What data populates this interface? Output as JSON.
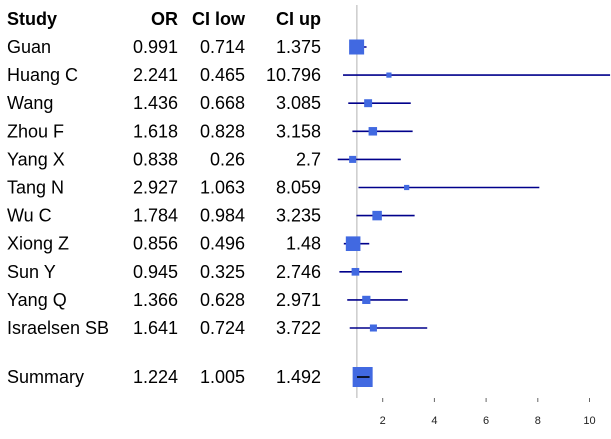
{
  "chart_data": {
    "type": "forest",
    "columns": [
      "Study",
      "OR",
      "CI low",
      "CI up"
    ],
    "columns_display": [
      "Study",
      "OR",
      "CI low",
      "CI up"
    ],
    "rows": [
      {
        "study": "Guan",
        "or": "0.991",
        "ci_low": "0.714",
        "ci_up": "1.375",
        "weight": 1.0
      },
      {
        "study": "Huang C",
        "or": "2.241",
        "ci_low": "0.465",
        "ci_up": "10.796",
        "weight": 0.12
      },
      {
        "study": "Wang",
        "or": "1.436",
        "ci_low": "0.668",
        "ci_up": "3.085",
        "weight": 0.28
      },
      {
        "study": "Zhou F",
        "or": "1.618",
        "ci_low": "0.828",
        "ci_up": "3.158",
        "weight": 0.32
      },
      {
        "study": "Yang X",
        "or": "0.838",
        "ci_low": "0.26",
        "ci_up": "2.7",
        "weight": 0.22
      },
      {
        "study": "Tang N",
        "or": "2.927",
        "ci_low": "1.063",
        "ci_up": "8.059",
        "weight": 0.12
      },
      {
        "study": "Wu C",
        "or": "1.784",
        "ci_low": "0.984",
        "ci_up": "3.235",
        "weight": 0.4
      },
      {
        "study": "Xiong Z",
        "or": "0.856",
        "ci_low": "0.496",
        "ci_up": "1.48",
        "weight": 0.95
      },
      {
        "study": "Sun Y",
        "or": "0.945",
        "ci_low": "0.325",
        "ci_up": "2.746",
        "weight": 0.26
      },
      {
        "study": "Yang Q",
        "or": "1.366",
        "ci_low": "0.628",
        "ci_up": "2.971",
        "weight": 0.3
      },
      {
        "study": "Israelsen SB",
        "or": "1.641",
        "ci_low": "0.724",
        "ci_up": "3.722",
        "weight": 0.22
      }
    ],
    "summary": {
      "study": "Summary",
      "or": "1.224",
      "ci_low": "1.005",
      "ci_up": "1.492"
    },
    "x_ticks": [
      2,
      4,
      6,
      8,
      10
    ],
    "xlim": [
      0,
      10
    ],
    "reference_line": 1,
    "colors": {
      "box": "#4169e1",
      "line": "#00008b",
      "reference": "#c8c8c8"
    }
  }
}
